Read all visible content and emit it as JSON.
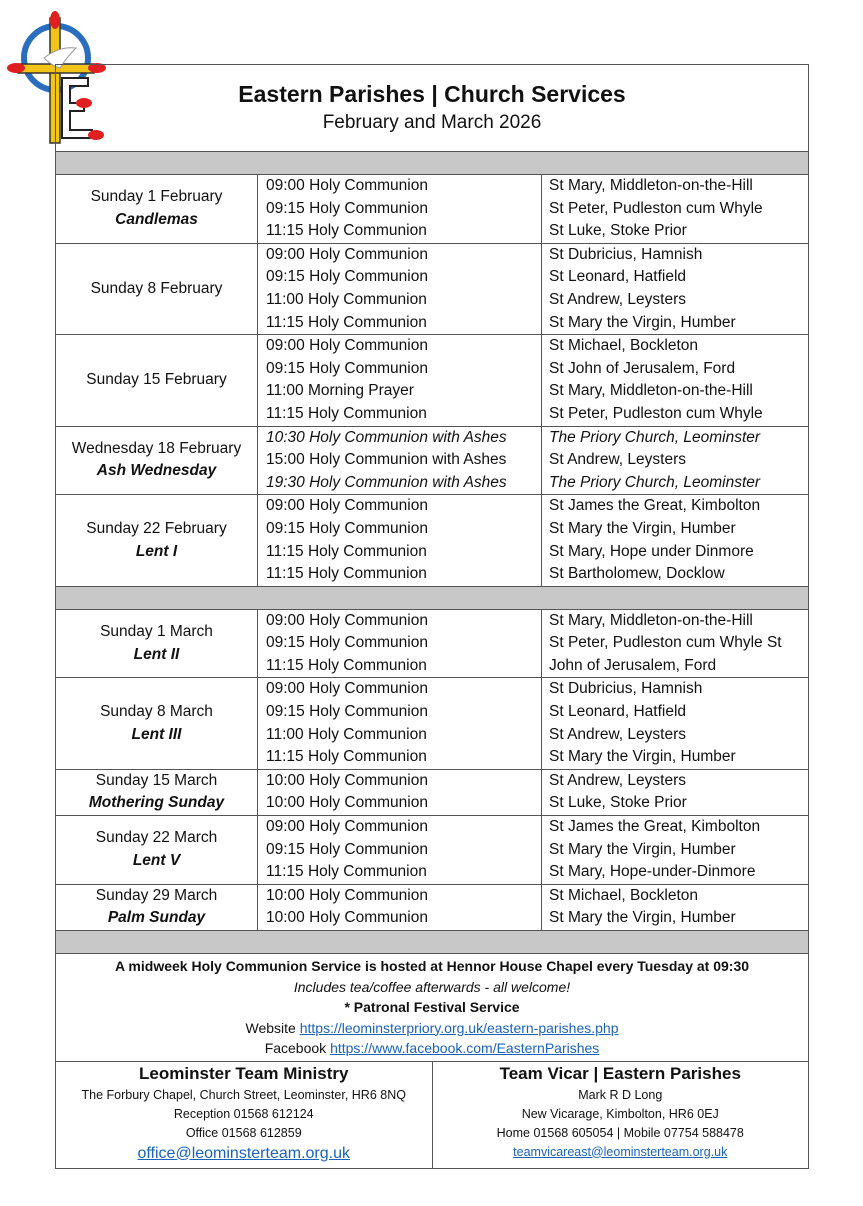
{
  "logo": {
    "name": "eastern-parishes-cross-dove-logo",
    "colors": {
      "gold": "#f2c417",
      "red": "#e02020",
      "blue": "#2a6ec0"
    }
  },
  "header": {
    "title": "Eastern Parishes | Church Services",
    "subtitle": "February and March 2026"
  },
  "sections": [
    {
      "days": [
        {
          "date": "Sunday 1 February",
          "label": "Candlemas",
          "services": [
            {
              "service": "09:00 Holy Communion",
              "place": "St Mary, Middleton-on-the-Hill"
            },
            {
              "service": "09:15 Holy Communion",
              "place": "St Peter, Pudleston cum Whyle"
            },
            {
              "service": "11:15 Holy Communion",
              "place": "St Luke, Stoke Prior"
            }
          ]
        },
        {
          "date": "Sunday 8 February",
          "label": "",
          "services": [
            {
              "service": "09:00 Holy Communion",
              "place": "St Dubricius, Hamnish"
            },
            {
              "service": "09:15 Holy Communion",
              "place": "St Leonard, Hatfield"
            },
            {
              "service": "11:00 Holy Communion",
              "place": "St Andrew, Leysters"
            },
            {
              "service": "11:15 Holy Communion",
              "place": "St Mary the Virgin, Humber"
            }
          ]
        },
        {
          "date": "Sunday 15 February",
          "label": "",
          "services": [
            {
              "service": "09:00 Holy Communion",
              "place": "St Michael, Bockleton"
            },
            {
              "service": "09:15 Holy Communion",
              "place": "St John of Jerusalem, Ford"
            },
            {
              "service": "11:00 Morning Prayer",
              "place": "St Mary, Middleton-on-the-Hill"
            },
            {
              "service": "11:15 Holy Communion",
              "place": "St Peter, Pudleston cum Whyle"
            }
          ]
        },
        {
          "date": "Wednesday 18 February",
          "label": "Ash Wednesday",
          "services": [
            {
              "service": "10:30 Holy Communion with Ashes",
              "place": "The Priory Church, Leominster",
              "italic": true
            },
            {
              "service": "15:00 Holy Communion with Ashes",
              "place": "St Andrew, Leysters"
            },
            {
              "service": "19:30 Holy Communion with Ashes",
              "place": "The Priory Church, Leominster",
              "italic": true
            }
          ]
        },
        {
          "date": "Sunday 22 February",
          "label": "Lent I",
          "services": [
            {
              "service": "09:00 Holy Communion",
              "place": "St James the Great, Kimbolton"
            },
            {
              "service": "09:15 Holy Communion",
              "place": "St Mary the Virgin, Humber"
            },
            {
              "service": "11:15 Holy Communion",
              "place": "St Mary, Hope under Dinmore"
            },
            {
              "service": "11:15 Holy Communion",
              "place": "St Bartholomew, Docklow"
            }
          ]
        }
      ]
    },
    {
      "days": [
        {
          "date": "Sunday 1 March",
          "label": "Lent II",
          "services": [
            {
              "service": "09:00 Holy Communion",
              "place": "St Mary, Middleton-on-the-Hill"
            },
            {
              "service": "09:15 Holy Communion",
              "place": "St Peter, Pudleston cum Whyle St"
            },
            {
              "service": "11:15 Holy Communion",
              "place": "John of Jerusalem, Ford"
            }
          ]
        },
        {
          "date": "Sunday 8 March",
          "label": "Lent III",
          "services": [
            {
              "service": "09:00 Holy Communion",
              "place": "St Dubricius, Hamnish"
            },
            {
              "service": "09:15 Holy Communion",
              "place": "St Leonard, Hatfield"
            },
            {
              "service": "11:00 Holy Communion",
              "place": "St Andrew, Leysters"
            },
            {
              "service": "11:15 Holy Communion",
              "place": "St Mary the Virgin, Humber"
            }
          ]
        },
        {
          "date": "Sunday 15 March",
          "label": "Mothering Sunday",
          "services": [
            {
              "service": "10:00 Holy Communion",
              "place": "St Andrew, Leysters"
            },
            {
              "service": "10:00 Holy Communion",
              "place": "St Luke, Stoke Prior"
            }
          ]
        },
        {
          "date": "Sunday 22 March",
          "label": "Lent V",
          "services": [
            {
              "service": "09:00 Holy Communion",
              "place": "St James the Great, Kimbolton"
            },
            {
              "service": "09:15 Holy Communion",
              "place": "St Mary the Virgin, Humber"
            },
            {
              "service": "11:15 Holy Communion",
              "place": "St Mary, Hope-under-Dinmore"
            }
          ]
        },
        {
          "date": "Sunday 29 March",
          "label": "Palm Sunday",
          "services": [
            {
              "service": "10:00 Holy Communion",
              "place": "St Michael, Bockleton"
            },
            {
              "service": "10:00 Holy Communion",
              "place": "St Mary the Virgin, Humber"
            }
          ]
        }
      ]
    }
  ],
  "notes": {
    "midweek": "A midweek Holy Communion Service is hosted at Hennor House Chapel every Tuesday at 09:30",
    "tea": "Includes tea/coffee afterwards - all welcome!",
    "patronal": "* Patronal Festival Service",
    "website_label": "Website",
    "website_url": "https://leominsterpriory.org.uk/eastern-parishes.php",
    "facebook_label": "Facebook",
    "facebook_url": "https://www.facebook.com/EasternParishes"
  },
  "contacts": {
    "left": {
      "title": "Leominster Team Ministry",
      "address": "The Forbury Chapel, Church Street, Leominster, HR6 8NQ",
      "reception": "Reception 01568 612124",
      "office": "Office 01568 612859",
      "email": "office@leominsterteam.org.uk"
    },
    "right": {
      "title": "Team Vicar | Eastern Parishes",
      "name": "Mark R D Long",
      "address": "New Vicarage, Kimbolton, HR6 0EJ",
      "phones": "Home 01568 605054 | Mobile 07754 588478",
      "email": "teamvicareast@leominsterteam.org.uk"
    }
  }
}
